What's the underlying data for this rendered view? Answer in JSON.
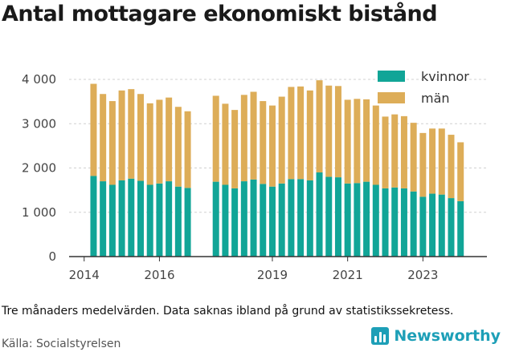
{
  "title": "Antal mottagare ekonomiskt bistånd",
  "caption": "Tre månaders medelvärden. Data saknas ibland på grund av statistikssekretess.",
  "source": "Källa: Socialstyrelsen",
  "brand": {
    "name": "Newsworthy",
    "icon": "bar-chart-icon"
  },
  "colors": {
    "kvinnor": "#11a597",
    "man": "#ddad58",
    "gridline": "#d0d0d0",
    "axis": "#333333"
  },
  "chart_data": {
    "type": "bar",
    "stacked": true,
    "title": "Antal mottagare ekonomiskt bistånd",
    "xlabel": "",
    "ylabel": "",
    "ylim": [
      0,
      4000
    ],
    "y_ticks": [
      {
        "value": 0,
        "label": "0"
      },
      {
        "value": 1000,
        "label": "1 000"
      },
      {
        "value": 2000,
        "label": "2 000"
      },
      {
        "value": 3000,
        "label": "3 000"
      },
      {
        "value": 4000,
        "label": "4 000"
      }
    ],
    "xlim": [
      2013.6,
      2024.7
    ],
    "x_ticks": [
      {
        "value": 2014,
        "label": "2014"
      },
      {
        "value": 2016,
        "label": "2016"
      },
      {
        "value": 2019,
        "label": "2019"
      },
      {
        "value": 2021,
        "label": "2021"
      },
      {
        "value": 2023,
        "label": "2023"
      }
    ],
    "grid": true,
    "legend_position": "top-right",
    "x": [
      2014.25,
      2014.5,
      2014.75,
      2015.0,
      2015.25,
      2015.5,
      2015.75,
      2016.0,
      2016.25,
      2016.5,
      2016.75,
      2017.5,
      2017.75,
      2018.0,
      2018.25,
      2018.5,
      2018.75,
      2019.0,
      2019.25,
      2019.5,
      2019.75,
      2020.0,
      2020.25,
      2020.5,
      2020.75,
      2021.0,
      2021.25,
      2021.5,
      2021.75,
      2022.0,
      2022.25,
      2022.5,
      2022.75,
      2023.0,
      2023.25,
      2023.5,
      2023.75,
      2024.0
    ],
    "series": [
      {
        "name": "kvinnor",
        "color": "#11a597",
        "values": [
          1820,
          1700,
          1620,
          1720,
          1760,
          1710,
          1620,
          1650,
          1700,
          1580,
          1550,
          1690,
          1620,
          1540,
          1700,
          1740,
          1640,
          1580,
          1650,
          1750,
          1750,
          1720,
          1900,
          1800,
          1790,
          1650,
          1660,
          1690,
          1620,
          1540,
          1560,
          1540,
          1470,
          1350,
          1420,
          1400,
          1320,
          1250
        ]
      },
      {
        "name": "män",
        "color": "#ddad58",
        "values": [
          2080,
          1970,
          1890,
          2030,
          2020,
          1960,
          1840,
          1890,
          1890,
          1800,
          1730,
          1940,
          1830,
          1770,
          1950,
          1980,
          1870,
          1830,
          1960,
          2080,
          2090,
          2030,
          2080,
          2060,
          2060,
          1890,
          1900,
          1860,
          1790,
          1620,
          1650,
          1630,
          1550,
          1440,
          1470,
          1490,
          1430,
          1330
        ]
      }
    ]
  }
}
